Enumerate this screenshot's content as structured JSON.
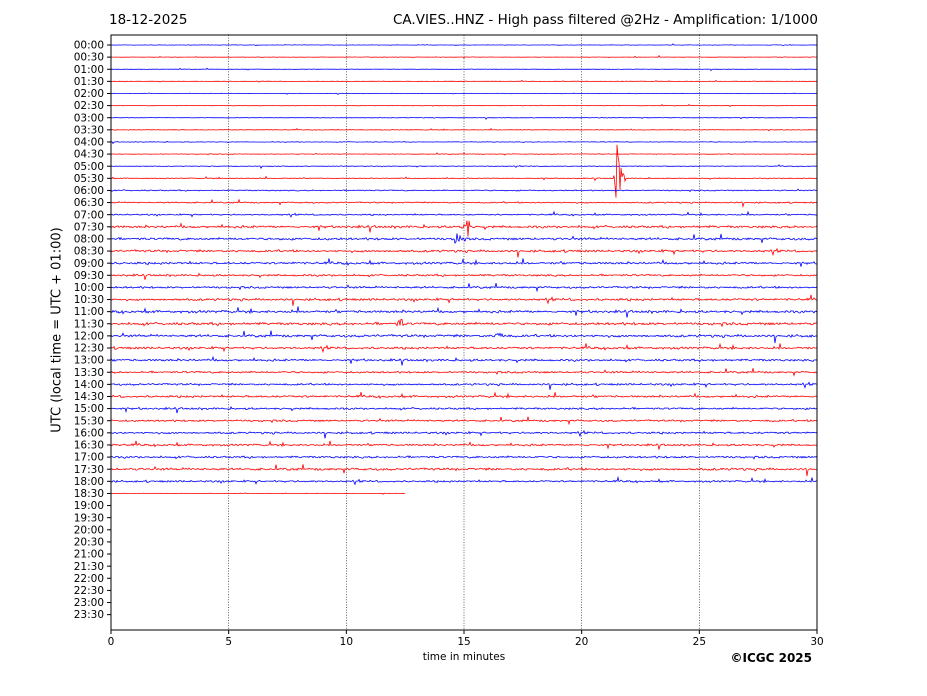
{
  "header": {
    "date": "18-12-2025",
    "title": "CA.VIES..HNZ - High pass filtered @2Hz - Amplification: 1/1000"
  },
  "footer": {
    "copyright": "©ICGC 2025"
  },
  "chart_data": {
    "type": "line",
    "title": "CA.VIES..HNZ - High pass filtered @2Hz - Amplification: 1/1000",
    "xlabel": "time in minutes",
    "ylabel": "UTC (local time = UTC + 01:00)",
    "xlim": [
      0,
      30
    ],
    "x_ticks": [
      0,
      5,
      10,
      15,
      20,
      25,
      30
    ],
    "x_gridlines": [
      5,
      10,
      15,
      20,
      25
    ],
    "grid": "vertical dotted",
    "colors": {
      "odd_rows": "#ff0000",
      "even_rows": "#0000ff",
      "axes": "#000000"
    },
    "row_labels": [
      "00:00",
      "00:30",
      "01:00",
      "01:30",
      "02:00",
      "02:30",
      "03:00",
      "03:30",
      "04:00",
      "04:30",
      "05:00",
      "05:30",
      "06:00",
      "06:30",
      "07:00",
      "07:30",
      "08:00",
      "08:30",
      "09:00",
      "09:30",
      "10:00",
      "10:30",
      "11:00",
      "11:30",
      "12:00",
      "12:30",
      "13:00",
      "13:30",
      "14:00",
      "14:30",
      "15:00",
      "15:30",
      "16:00",
      "16:30",
      "17:00",
      "17:30",
      "18:00",
      "18:30",
      "19:00",
      "19:30",
      "20:00",
      "20:30",
      "21:00",
      "21:30",
      "22:00",
      "22:30",
      "23:00",
      "23:30"
    ],
    "trace_end_minutes": [
      30,
      30,
      30,
      30,
      30,
      30,
      30,
      30,
      30,
      30,
      30,
      30,
      30,
      30,
      30,
      30,
      30,
      30,
      30,
      30,
      30,
      30,
      30,
      30,
      30,
      30,
      30,
      30,
      30,
      30,
      30,
      30,
      30,
      30,
      30,
      30,
      30,
      12.5,
      0,
      0,
      0,
      0,
      0,
      0,
      0,
      0,
      0,
      0
    ],
    "noise_level": [
      0.3,
      0.3,
      0.3,
      0.3,
      0.3,
      0.35,
      0.35,
      0.4,
      0.4,
      0.4,
      0.45,
      0.6,
      0.8,
      0.9,
      0.9,
      1.6,
      1.6,
      1.5,
      1.5,
      1.3,
      1.4,
      1.5,
      1.7,
      1.8,
      1.7,
      1.5,
      1.5,
      1.3,
      1.3,
      1.4,
      1.3,
      1.3,
      1.3,
      1.3,
      1.4,
      1.6,
      1.2,
      0.3,
      0,
      0,
      0,
      0,
      0,
      0,
      0,
      0,
      0,
      0
    ],
    "events": [
      {
        "row": "05:30",
        "minute": 21.6,
        "amplitude": 80
      },
      {
        "row": "07:30",
        "minute": 15.1,
        "amplitude": 22
      },
      {
        "row": "08:00",
        "minute": 14.8,
        "amplitude": 20
      },
      {
        "row": "11:30",
        "minute": 12.3,
        "amplitude": 10
      },
      {
        "row": "12:00",
        "minute": 16.5,
        "amplitude": 12
      }
    ]
  }
}
